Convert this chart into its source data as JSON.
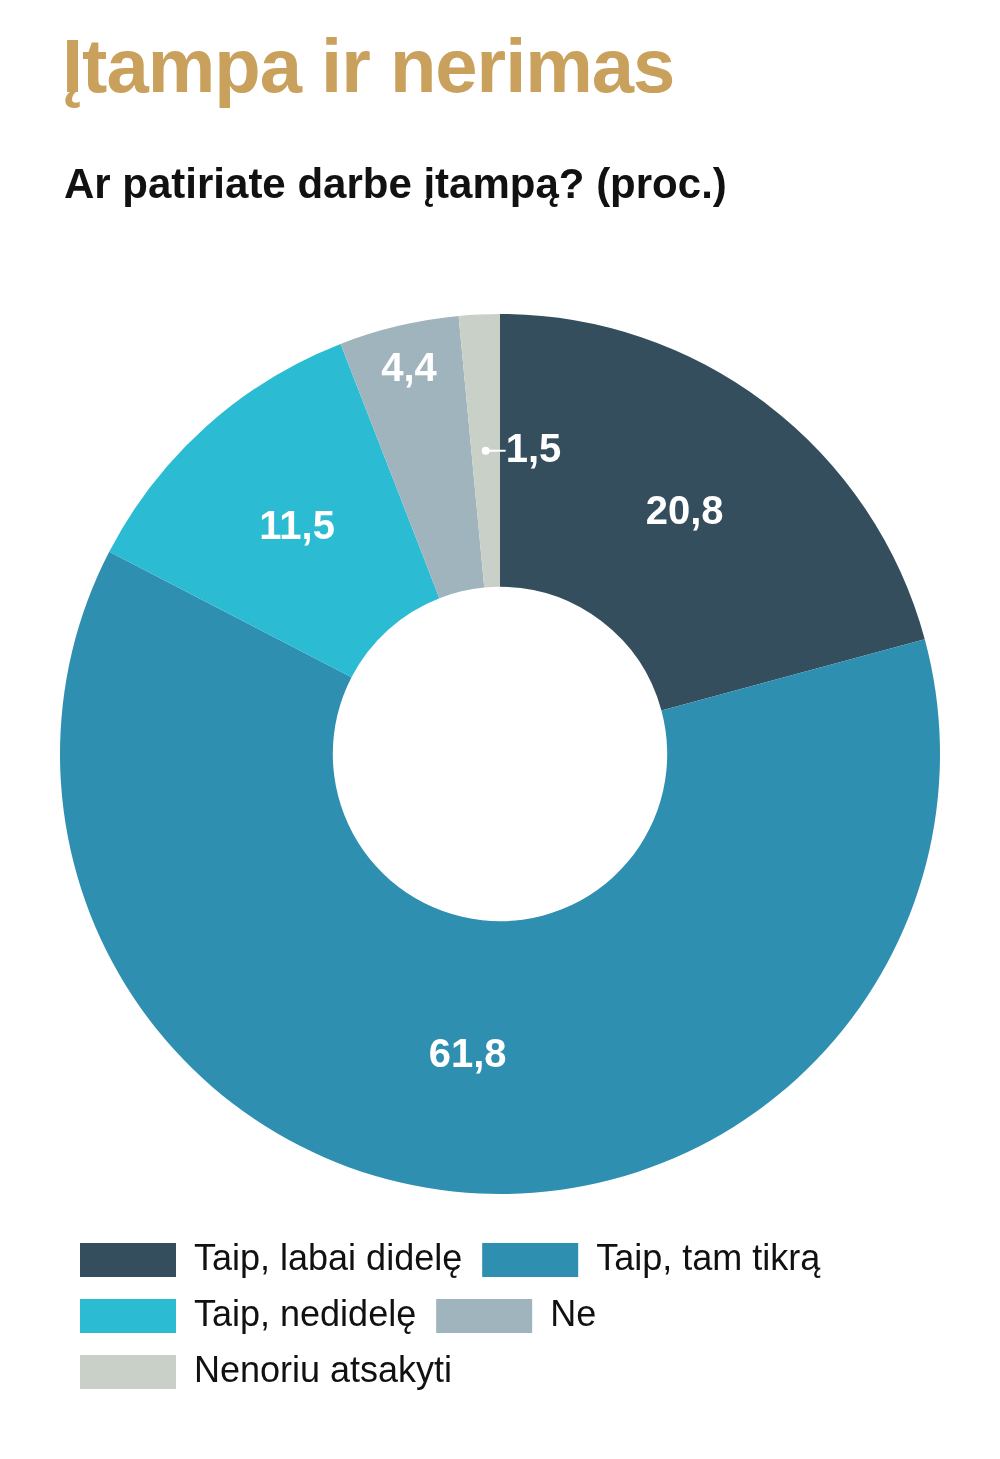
{
  "chart_data": {
    "type": "donut",
    "title": "Įtampa ir nerimas",
    "subtitle": "Ar patiriate darbe įtampą? (proc.)",
    "categories": [
      "Taip, labai didelę",
      "Taip, tam tikrą",
      "Taip, nedidelę",
      "Ne",
      "Nenoriu atsakyti"
    ],
    "values": [
      20.8,
      61.8,
      11.5,
      4.4,
      1.5
    ],
    "colors": [
      "#344e5d",
      "#2e8fb0",
      "#2bbcd4",
      "#a0b4bd",
      "#c9d0c8"
    ],
    "value_labels": [
      "20,8",
      "61,8",
      "11,5",
      "4,4",
      "1,5"
    ],
    "legend": "bottom"
  }
}
